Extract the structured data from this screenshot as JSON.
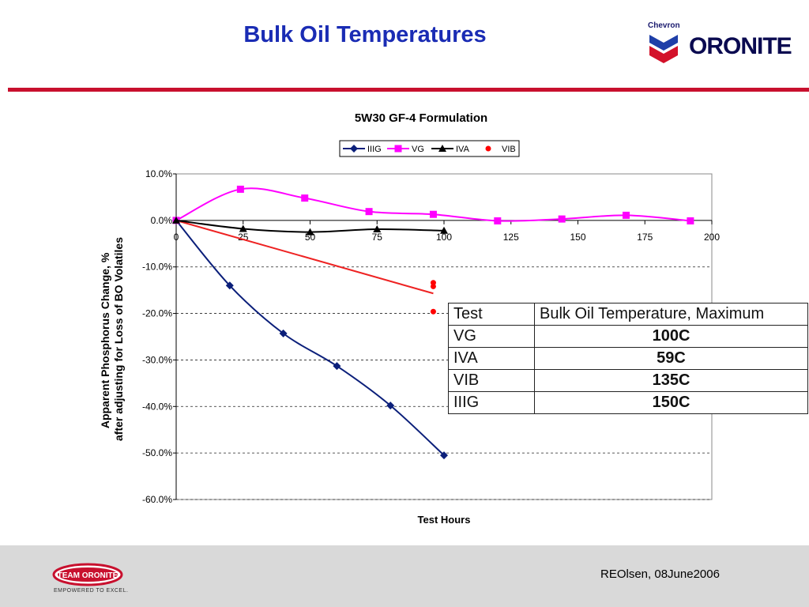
{
  "slide": {
    "title": "Bulk Oil Temperatures",
    "brand_small": "Chevron",
    "brand_large": "ORONITE",
    "footer_credit": "REOlsen, 08June2006",
    "footer_logo_text": "TEAM ORONITE",
    "footer_tagline": "EMPOWERED TO EXCEL."
  },
  "colors": {
    "title": "#1a2cb4",
    "rule": "#c8102e",
    "IIIG": "#0b1f7a",
    "VG": "#ff00ff",
    "IVA": "#000000",
    "VIB": "#ff0000",
    "trend": "#ee2222"
  },
  "chart_data": {
    "type": "line",
    "title": "5W30 GF-4 Formulation",
    "xlabel": "Test Hours",
    "ylabel": "Apparent Phosphorus Change, % after adjusting for Loss of BO Volatiles",
    "ylabel_lines": [
      "Apparent Phosphorus Change, %",
      "after adjusting for Loss of BO Volatiles"
    ],
    "xlim": [
      0,
      200
    ],
    "ylim": [
      -60,
      10
    ],
    "x_ticks": [
      0,
      25,
      50,
      75,
      100,
      125,
      150,
      175,
      200
    ],
    "x_tick_labels": [
      "0",
      "25",
      "50",
      "75",
      "100",
      "125",
      "150",
      "175",
      "200"
    ],
    "y_ticks": [
      10,
      0,
      -10,
      -20,
      -30,
      -40,
      -50,
      -60
    ],
    "y_tick_labels": [
      "10.0%",
      "0.0%",
      "-10.0%",
      "-20.0%",
      "-30.0%",
      "-40.0%",
      "-50.0%",
      "-60.0%"
    ],
    "grid": "horizontal dashed",
    "legend": "top",
    "series": [
      {
        "name": "IIIG",
        "marker": "diamond",
        "x": [
          0,
          20,
          40,
          60,
          80,
          100
        ],
        "y": [
          0,
          -14,
          -24.3,
          -31.3,
          -39.8,
          -50.5
        ]
      },
      {
        "name": "VG",
        "marker": "square",
        "x": [
          0,
          24,
          48,
          72,
          96,
          120,
          144,
          168,
          192
        ],
        "y": [
          0,
          6.7,
          4.8,
          1.9,
          1.3,
          -0.1,
          0.3,
          1.1,
          -0.1
        ]
      },
      {
        "name": "IVA",
        "marker": "triangle",
        "x": [
          0,
          25,
          50,
          75,
          100
        ],
        "y": [
          0,
          -1.8,
          -2.5,
          -1.9,
          -2.2
        ]
      },
      {
        "name": "VIB",
        "marker": "circle",
        "x": [
          96,
          96,
          96
        ],
        "y": [
          -13.4,
          -14.2,
          -19.6
        ]
      }
    ],
    "trendline": {
      "x": [
        0,
        96
      ],
      "y": [
        0,
        -15.7
      ]
    }
  },
  "table": {
    "headers": [
      "Test",
      "Bulk Oil Temperature, Maximum"
    ],
    "rows": [
      {
        "test": "VG",
        "value": "100C"
      },
      {
        "test": "IVA",
        "value": "59C"
      },
      {
        "test": "VIB",
        "value": "135C"
      },
      {
        "test": "IIIG",
        "value": "150C"
      }
    ]
  }
}
